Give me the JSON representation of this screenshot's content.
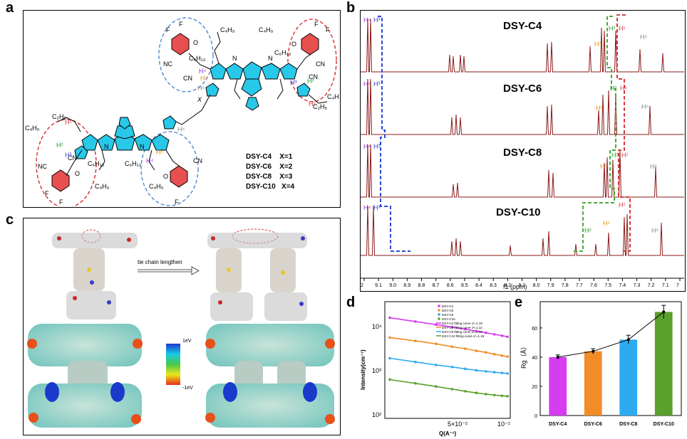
{
  "panels": {
    "a": {
      "letter": "a",
      "structure_labels": {
        "c4h9": "C₄H₉",
        "c6h13": "C₆H₁₃",
        "c2h5": "C₂H₅",
        "nc": "NC",
        "cn": "CN",
        "n": "N",
        "s": "S",
        "o": "O",
        "f": "F",
        "x": "X"
      },
      "proton_labels": [
        "H¹",
        "H²",
        "H³",
        "H⁴",
        "H⁵",
        "H⁶"
      ],
      "legend": [
        "DSY-C4    X=1",
        "DSY-C6    X=2",
        "DSY-C8    X=3",
        "DSY-C10   X=4"
      ]
    },
    "b": {
      "letter": "b",
      "spectra_labels": [
        "DSY-C4",
        "DSY-C6",
        "DSY-C8",
        "DSY-C10"
      ],
      "axis_label": "f1 (ppm)",
      "ticks": [
        "2",
        "9.1",
        "9.0",
        "8.9",
        "8.8",
        "8.7",
        "8.6",
        "8.5",
        "8.4",
        "8.3",
        "8.2",
        "8.1",
        "8.0",
        "7.9",
        "7.8",
        "7.7",
        "7.6",
        "7.5",
        "7.4",
        "7.3",
        "7.2",
        "7.1",
        "7"
      ],
      "h_labels": {
        "h4": "H⁴",
        "h3": "H³",
        "h5": "H⁵",
        "h2": "H²",
        "h1": "H¹",
        "h6": "H⁶"
      }
    },
    "c": {
      "letter": "c",
      "arrow_label": "tie chain lengthen",
      "scale_top": "1eV",
      "scale_bottom": "-1eV"
    },
    "d": {
      "letter": "d",
      "ylabel": "Intensity(cm⁻¹)",
      "xlabel": "Q(A⁻¹)",
      "x_ticks": [
        "5×10⁻²",
        "10⁻¹"
      ],
      "y_ticks": [
        "10⁴",
        "10³",
        "10²"
      ],
      "legend": [
        "DSY-C4",
        "DSY-C6",
        "DSY-C8",
        "DSY-C10",
        "DSY-C4 fitting curve  x²=1.19",
        "DSY-C6 fitting curve  x²=1.12",
        "DSY-C8 fitting curve  x²=1.08",
        "DSY-C10 fitting curve  x²=1.18"
      ]
    },
    "e": {
      "letter": "e",
      "ylabel": "Rg（Å）",
      "y_ticks": [
        "0",
        "20",
        "40",
        "60"
      ]
    }
  },
  "chart_data": [
    {
      "type": "bar",
      "panel": "e",
      "categories": [
        "DSY-C4",
        "DSY-C6",
        "DSY-C8",
        "DSY-C10"
      ],
      "values": [
        40,
        44,
        52,
        71
      ],
      "errors": [
        1.5,
        1.8,
        3,
        4.5
      ],
      "ylim": [
        0,
        78
      ],
      "ylabel": "Rg（Å）",
      "colors": [
        "#d63cf0",
        "#f28c28",
        "#2eaaf0",
        "#5aa02c"
      ],
      "line_overlay": true
    },
    {
      "type": "scatter",
      "panel": "d",
      "x_scale": "log",
      "y_scale": "log",
      "xlim": [
        0.02,
        0.11
      ],
      "ylim": [
        80,
        30000
      ],
      "series": [
        {
          "name": "DSY-C4",
          "color": "#d63cf0",
          "x": [
            0.021,
            0.03,
            0.04,
            0.05,
            0.06,
            0.07,
            0.08,
            0.09,
            0.1,
            0.108
          ],
          "y": [
            14000,
            11500,
            9800,
            8600,
            7700,
            7000,
            6400,
            5900,
            5500,
            5200
          ]
        },
        {
          "name": "DSY-C6",
          "color": "#f28c28",
          "x": [
            0.021,
            0.03,
            0.04,
            0.05,
            0.06,
            0.07,
            0.08,
            0.09,
            0.1,
            0.108
          ],
          "y": [
            5000,
            4200,
            3600,
            3100,
            2800,
            2500,
            2300,
            2100,
            1950,
            1850
          ]
        },
        {
          "name": "DSY-C8",
          "color": "#2eaaf0",
          "x": [
            0.021,
            0.03,
            0.04,
            0.05,
            0.06,
            0.07,
            0.08,
            0.09,
            0.1,
            0.108
          ],
          "y": [
            1700,
            1400,
            1200,
            1080,
            980,
            910,
            860,
            820,
            790,
            770
          ]
        },
        {
          "name": "DSY-C10",
          "color": "#5aa02c",
          "x": [
            0.021,
            0.03,
            0.04,
            0.05,
            0.06,
            0.07,
            0.08,
            0.09,
            0.1,
            0.108
          ],
          "y": [
            560,
            460,
            390,
            340,
            305,
            280,
            262,
            250,
            240,
            235
          ]
        }
      ]
    }
  ]
}
